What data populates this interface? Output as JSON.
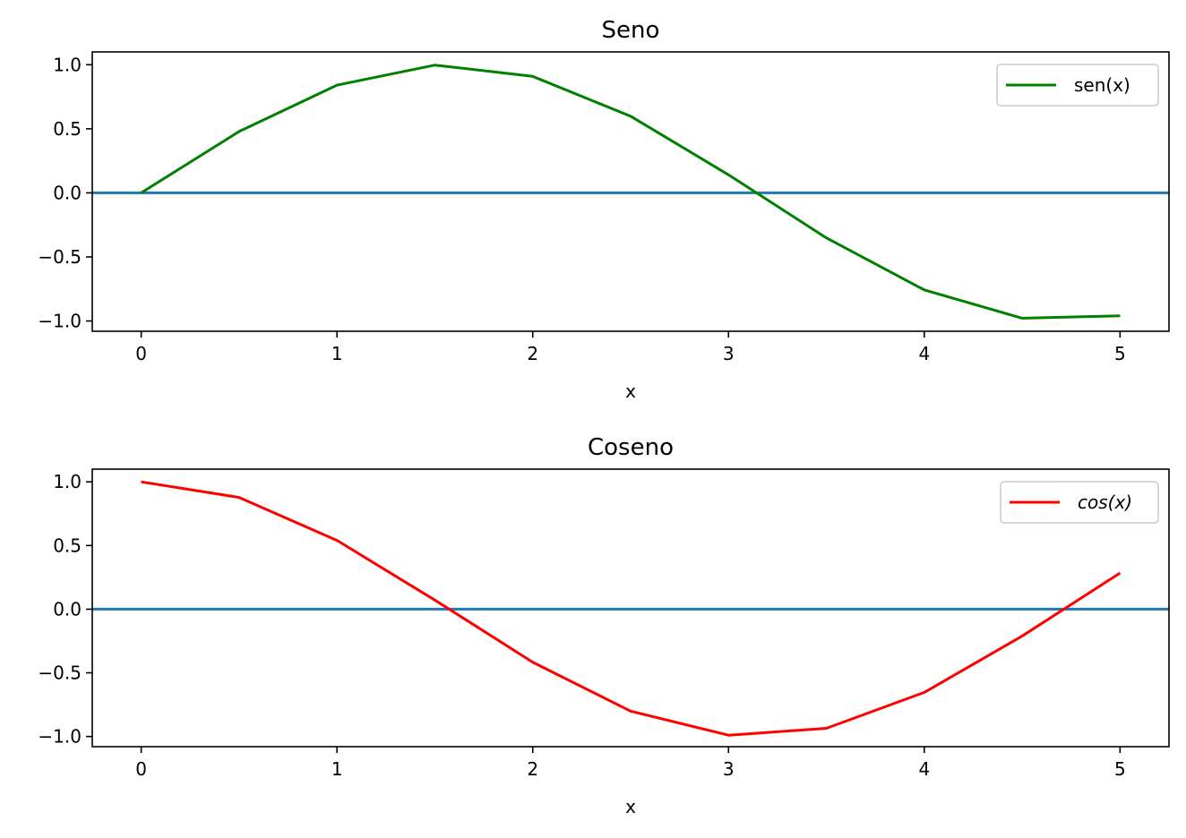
{
  "chart_data": [
    {
      "type": "line",
      "title": "Seno",
      "xlabel": "x",
      "ylabel": "",
      "xlim": [
        -0.25,
        5.25
      ],
      "ylim": [
        -1.08,
        1.1
      ],
      "xticks": [
        0,
        1,
        2,
        3,
        4,
        5
      ],
      "xtick_labels": [
        "0",
        "1",
        "2",
        "3",
        "4",
        "5"
      ],
      "yticks": [
        1.0,
        0.5,
        0.0,
        -0.5,
        -1.0
      ],
      "ytick_labels": [
        "1.0",
        "0.5",
        "0.0",
        "−0.5",
        "−1.0"
      ],
      "legend": "top-right",
      "grid": false,
      "reference_line": {
        "y": 0,
        "color": "#1f77b4"
      },
      "series": [
        {
          "name": "sen(x)",
          "color": "#008000",
          "x": [
            0,
            0.5,
            1,
            1.5,
            2,
            2.5,
            3,
            3.5,
            4,
            4.5,
            5
          ],
          "y": [
            0.0,
            0.479,
            0.841,
            0.997,
            0.909,
            0.598,
            0.141,
            -0.351,
            -0.757,
            -0.978,
            -0.959
          ]
        }
      ]
    },
    {
      "type": "line",
      "title": "Coseno",
      "xlabel": "x",
      "ylabel": "",
      "xlim": [
        -0.25,
        5.25
      ],
      "ylim": [
        -1.08,
        1.1
      ],
      "xticks": [
        0,
        1,
        2,
        3,
        4,
        5
      ],
      "xtick_labels": [
        "0",
        "1",
        "2",
        "3",
        "4",
        "5"
      ],
      "yticks": [
        1.0,
        0.5,
        0.0,
        -0.5,
        -1.0
      ],
      "ytick_labels": [
        "1.0",
        "0.5",
        "0.0",
        "−0.5",
        "−1.0"
      ],
      "legend": "top-right",
      "grid": false,
      "reference_line": {
        "y": 0,
        "color": "#1f77b4"
      },
      "series": [
        {
          "name": "cos(x)",
          "color": "#ff0000",
          "x": [
            0,
            0.5,
            1,
            1.5,
            2,
            2.5,
            3,
            3.5,
            4,
            4.5,
            5
          ],
          "y": [
            1.0,
            0.878,
            0.54,
            0.071,
            -0.416,
            -0.801,
            -0.99,
            -0.936,
            -0.654,
            -0.211,
            0.284
          ]
        }
      ]
    }
  ]
}
